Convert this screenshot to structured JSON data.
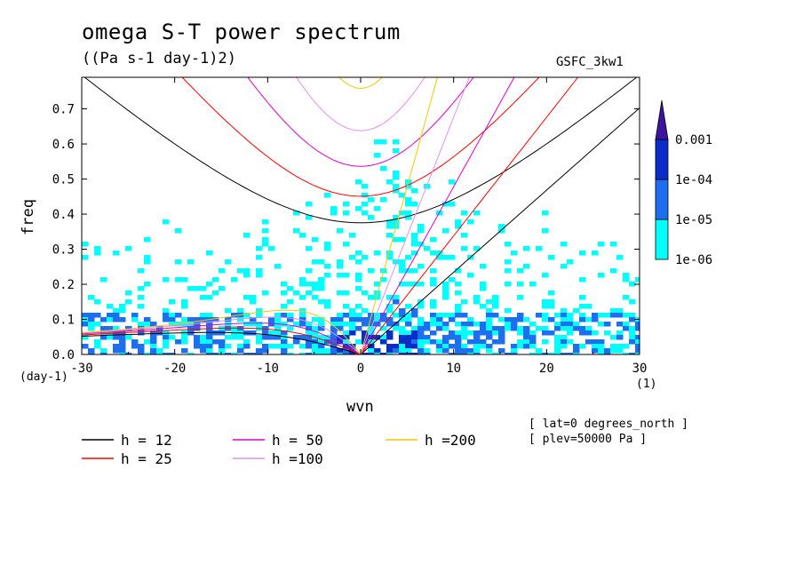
{
  "header": {
    "title": "omega S-T power spectrum",
    "subtitle": "((Pa s-1 day-1)2)",
    "dataset": "GSFC_3kw1"
  },
  "notes": {
    "lat": "[ lat=0 degrees_north ]",
    "plev": "[ plev=50000 Pa ]"
  },
  "chart_data": {
    "type": "heatmap",
    "title": "omega S-T power spectrum",
    "units": "((Pa s-1 day-1)2)",
    "xlabel": "wvn",
    "ylabel": "freq",
    "x_units": "(1)",
    "y_units": "(day-1)",
    "xlim": [
      -30,
      30
    ],
    "ylim": [
      0.0,
      0.79
    ],
    "x_ticks": [
      -30,
      -20,
      -10,
      0,
      10,
      20,
      30
    ],
    "x_tick_labels": [
      "-30",
      "-20",
      "-10",
      "0",
      "10",
      "20",
      "30"
    ],
    "y_ticks": [
      0.0,
      0.1,
      0.2,
      0.3,
      0.4,
      0.5,
      0.6,
      0.7
    ],
    "y_tick_labels": [
      "0.0",
      "0.1",
      "0.2",
      "0.3",
      "0.4",
      "0.5",
      "0.6",
      "0.7"
    ],
    "colorbar": {
      "levels": [
        1e-06,
        1e-05,
        0.0001,
        0.001
      ],
      "labels": [
        "1e-06",
        "1e-05",
        "1e-04",
        "0.001"
      ],
      "colors": [
        "#00FFFF",
        "#1E6EF0",
        "#0A2CC8",
        "#3C14A0"
      ],
      "extend": "max"
    },
    "dispersion_curves": [
      {
        "name": "h = 12",
        "h": 12,
        "color": "#000000"
      },
      {
        "name": "h = 25",
        "h": 25,
        "color": "#FF0000"
      },
      {
        "name": "h = 50",
        "h": 50,
        "color": "#E000C8"
      },
      {
        "name": "h =100",
        "h": 100,
        "color": "#E090E8"
      },
      {
        "name": "h =200",
        "h": 200,
        "color": "#F0C800"
      }
    ]
  }
}
